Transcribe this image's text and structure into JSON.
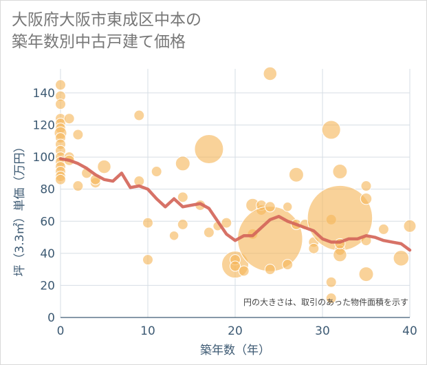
{
  "title": "大阪府大阪市東成区中本の\n築年数別中古戸建て価格",
  "chart_data": {
    "type": "scatter",
    "xlabel": "築年数（年）",
    "ylabel": "坪（3.3㎡）単価（万円）",
    "xlim": [
      0,
      40
    ],
    "ylim": [
      0,
      155
    ],
    "xticks": [
      0,
      10,
      20,
      30,
      40
    ],
    "yticks": [
      0,
      20,
      40,
      60,
      80,
      100,
      120,
      140
    ],
    "grid": true,
    "note": "円の大きさは、取引のあった物件面積を示す",
    "colors": {
      "bubble": "#f5b75a",
      "line": "#d4665a"
    },
    "bubbles": [
      {
        "x": 0,
        "y": 145,
        "size": 1
      },
      {
        "x": 0,
        "y": 138,
        "size": 1
      },
      {
        "x": 0,
        "y": 133,
        "size": 1
      },
      {
        "x": 0,
        "y": 124,
        "size": 1
      },
      {
        "x": 0,
        "y": 121,
        "size": 1
      },
      {
        "x": 0,
        "y": 118,
        "size": 1
      },
      {
        "x": 0,
        "y": 115,
        "size": 1.2
      },
      {
        "x": 0,
        "y": 112,
        "size": 1
      },
      {
        "x": 0,
        "y": 108,
        "size": 1
      },
      {
        "x": 0,
        "y": 104,
        "size": 1
      },
      {
        "x": 0,
        "y": 100,
        "size": 1
      },
      {
        "x": 0,
        "y": 97,
        "size": 1
      },
      {
        "x": 0,
        "y": 94,
        "size": 1
      },
      {
        "x": 0,
        "y": 91,
        "size": 1
      },
      {
        "x": 0,
        "y": 88,
        "size": 1
      },
      {
        "x": 0,
        "y": 86,
        "size": 1
      },
      {
        "x": 1,
        "y": 124,
        "size": 1
      },
      {
        "x": 1,
        "y": 100,
        "size": 1
      },
      {
        "x": 1,
        "y": 98,
        "size": 1
      },
      {
        "x": 2,
        "y": 114,
        "size": 1
      },
      {
        "x": 2,
        "y": 82,
        "size": 1
      },
      {
        "x": 3,
        "y": 90,
        "size": 1
      },
      {
        "x": 4,
        "y": 84,
        "size": 1
      },
      {
        "x": 4,
        "y": 86,
        "size": 1
      },
      {
        "x": 5,
        "y": 94,
        "size": 1.3
      },
      {
        "x": 9,
        "y": 126,
        "size": 1
      },
      {
        "x": 9,
        "y": 85,
        "size": 1
      },
      {
        "x": 10,
        "y": 59,
        "size": 1
      },
      {
        "x": 10,
        "y": 36,
        "size": 1
      },
      {
        "x": 11,
        "y": 91,
        "size": 1
      },
      {
        "x": 13,
        "y": 51,
        "size": 0.9
      },
      {
        "x": 14,
        "y": 96,
        "size": 1.4
      },
      {
        "x": 14,
        "y": 75,
        "size": 1
      },
      {
        "x": 14,
        "y": 58,
        "size": 1
      },
      {
        "x": 16,
        "y": 70,
        "size": 1
      },
      {
        "x": 17,
        "y": 105,
        "size": 2.8
      },
      {
        "x": 17,
        "y": 53,
        "size": 1
      },
      {
        "x": 18,
        "y": 57,
        "size": 0.9
      },
      {
        "x": 19,
        "y": 59,
        "size": 1
      },
      {
        "x": 20,
        "y": 33,
        "size": 2.6
      },
      {
        "x": 20,
        "y": 36,
        "size": 1
      },
      {
        "x": 20,
        "y": 32,
        "size": 1
      },
      {
        "x": 21,
        "y": 29,
        "size": 1
      },
      {
        "x": 22,
        "y": 70,
        "size": 1.3
      },
      {
        "x": 22,
        "y": 52,
        "size": 1
      },
      {
        "x": 23,
        "y": 67,
        "size": 1
      },
      {
        "x": 23,
        "y": 70,
        "size": 1
      },
      {
        "x": 24,
        "y": 152,
        "size": 1.3
      },
      {
        "x": 24,
        "y": 49,
        "size": 6.3
      },
      {
        "x": 24,
        "y": 69,
        "size": 1
      },
      {
        "x": 24,
        "y": 30,
        "size": 1
      },
      {
        "x": 26,
        "y": 69,
        "size": 0.9
      },
      {
        "x": 26,
        "y": 33,
        "size": 1
      },
      {
        "x": 27,
        "y": 89,
        "size": 1.4
      },
      {
        "x": 27,
        "y": 58,
        "size": 1
      },
      {
        "x": 28,
        "y": 58,
        "size": 1
      },
      {
        "x": 29,
        "y": 47,
        "size": 1
      },
      {
        "x": 29,
        "y": 43,
        "size": 1
      },
      {
        "x": 31,
        "y": 117,
        "size": 1.8
      },
      {
        "x": 31,
        "y": 61,
        "size": 1
      },
      {
        "x": 31,
        "y": 22,
        "size": 1
      },
      {
        "x": 31,
        "y": 12,
        "size": 1
      },
      {
        "x": 32,
        "y": 62,
        "size": 6.3
      },
      {
        "x": 32,
        "y": 91,
        "size": 1.4
      },
      {
        "x": 32,
        "y": 42,
        "size": 1
      },
      {
        "x": 32,
        "y": 39,
        "size": 1.3
      },
      {
        "x": 32,
        "y": 46,
        "size": 1
      },
      {
        "x": 35,
        "y": 82,
        "size": 1
      },
      {
        "x": 35,
        "y": 74,
        "size": 1.1
      },
      {
        "x": 35,
        "y": 48,
        "size": 1
      },
      {
        "x": 35,
        "y": 27,
        "size": 1.4
      },
      {
        "x": 37,
        "y": 55,
        "size": 1
      },
      {
        "x": 39,
        "y": 37,
        "size": 1.5
      },
      {
        "x": 40,
        "y": 57,
        "size": 1.2
      }
    ],
    "trend": {
      "x": [
        0,
        1,
        2,
        3,
        4,
        5,
        6,
        7,
        8,
        9,
        10,
        11,
        12,
        13,
        14,
        15,
        16,
        17,
        18,
        19,
        20,
        21,
        22,
        23,
        24,
        25,
        26,
        27,
        28,
        29,
        30,
        31,
        32,
        33,
        34,
        35,
        36,
        37,
        38,
        39,
        40
      ],
      "y": [
        99,
        98,
        96,
        93,
        89,
        86,
        85,
        90,
        81,
        82,
        80,
        74,
        69,
        74,
        69,
        70,
        71,
        68,
        60,
        52,
        48,
        51,
        51,
        56,
        61,
        63,
        60,
        58,
        56,
        54,
        49,
        47,
        47,
        49,
        49,
        51,
        50,
        48,
        47,
        46,
        42
      ]
    }
  }
}
